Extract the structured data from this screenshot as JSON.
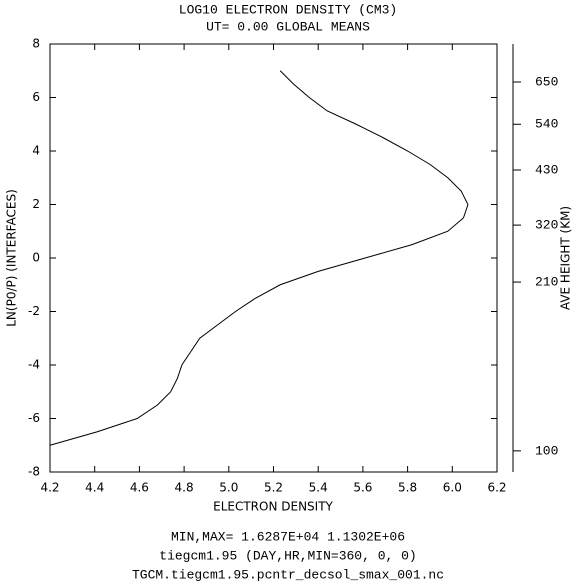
{
  "chart_data": {
    "type": "line",
    "title": "LOG10 ELECTRON DENSITY (CM3)",
    "subtitle": "UT= 0.00 GLOBAL MEANS",
    "xlabel": "ELECTRON DENSITY",
    "ylabel": "LN(P0/P) (INTERFACES)",
    "y2label": "AVE HEIGHT (KM)",
    "footer": [
      "MIN,MAX=  1.6287E+04  1.1302E+06",
      "tiegcm1.95  (DAY,HR,MIN=360, 0, 0)",
      "TGCM.tiegcm1.95.pcntr_decsol_smax_001.nc"
    ],
    "x": [
      4.2,
      4.41,
      4.59,
      4.68,
      4.74,
      4.77,
      4.79,
      4.83,
      4.87,
      4.95,
      5.03,
      5.12,
      5.23,
      5.4,
      5.61,
      5.82,
      5.98,
      6.05,
      6.07,
      6.04,
      5.98,
      5.9,
      5.8,
      5.69,
      5.57,
      5.44,
      5.36,
      5.29,
      5.23
    ],
    "values": [
      -7,
      -6.5,
      -6,
      -5.5,
      -5,
      -4.5,
      -4,
      -3.5,
      -3,
      -2.5,
      -2,
      -1.5,
      -1,
      -0.5,
      0,
      0.5,
      1,
      1.5,
      2,
      2.5,
      3,
      3.5,
      4,
      4.5,
      5,
      5.5,
      6,
      6.5,
      7
    ],
    "color": "#000000",
    "xlim": [
      4.2,
      6.2
    ],
    "ylim": [
      -8,
      8
    ],
    "xticks": [
      4.2,
      4.4,
      4.6,
      4.8,
      {
        "value": 5,
        "label": "5.0"
      },
      5.2,
      5.4,
      5.6,
      5.8,
      {
        "value": 6,
        "label": "6.0"
      },
      6.2
    ],
    "yticks": [
      -8,
      -6,
      -4,
      -2,
      0,
      2,
      4,
      6,
      8
    ],
    "y2ticks": [
      100,
      210,
      320,
      430,
      540,
      650
    ],
    "y2tick_levels": [
      -7.21,
      -0.9,
      1.23,
      3.29,
      5.0,
      6.58
    ]
  }
}
